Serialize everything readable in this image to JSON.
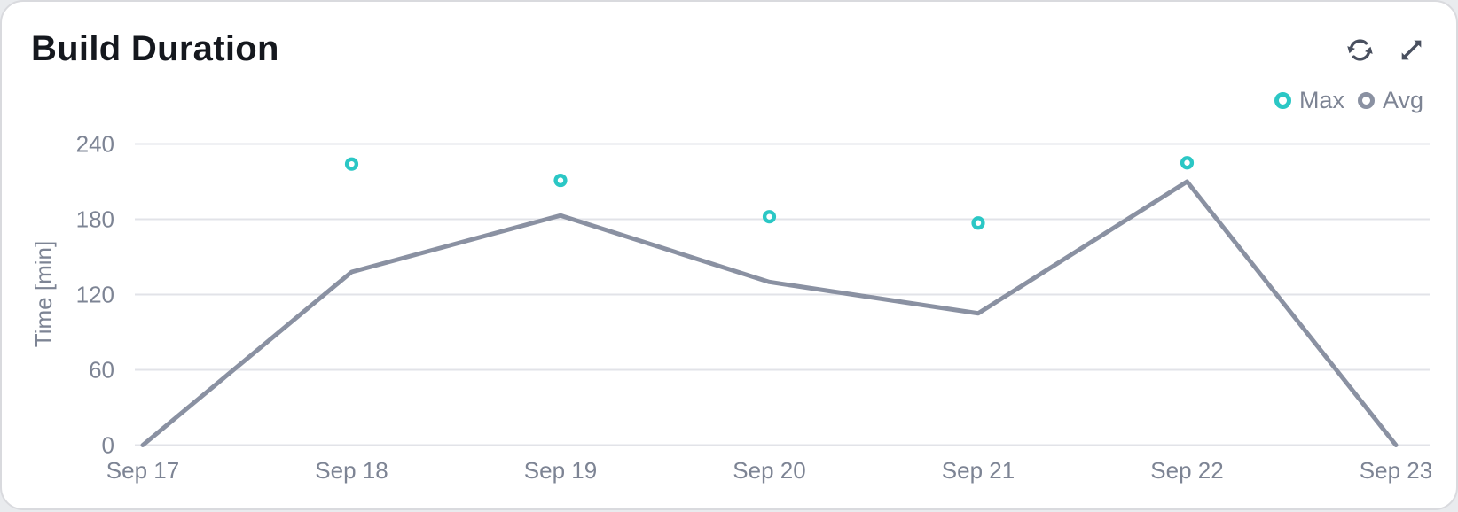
{
  "header": {
    "title": "Build Duration"
  },
  "toolbar": {
    "icons": [
      "refresh-icon",
      "expand-icon"
    ]
  },
  "colors": {
    "accent_teal": "#2BC7C5",
    "series_gray": "#8A91A2",
    "grid": "#E2E3E8",
    "tick_text": "#7D8494",
    "title_text": "#15181E",
    "icon": "#49505F",
    "card_bg": "#FFFFFF",
    "page_bg": "#E9EBEE",
    "card_border": "#D9DADE"
  },
  "chart_data": {
    "type": "line",
    "title": "Build Duration",
    "categories": [
      "Sep 17",
      "Sep 18",
      "Sep 19",
      "Sep 20",
      "Sep 21",
      "Sep 22",
      "Sep 23"
    ],
    "series": [
      {
        "name": "Max",
        "type": "scatter",
        "color": "#2BC7C5",
        "values": [
          null,
          224,
          211,
          182,
          177,
          225,
          null
        ]
      },
      {
        "name": "Avg",
        "type": "line",
        "color": "#8A91A2",
        "values": [
          0,
          138,
          183,
          130,
          105,
          210,
          0
        ]
      }
    ],
    "xlabel": "",
    "ylabel": "Time [min]",
    "yticks": [
      0,
      60,
      120,
      180,
      240
    ],
    "ylim": [
      0,
      240
    ],
    "grid": true,
    "legend_position": "top-right"
  }
}
